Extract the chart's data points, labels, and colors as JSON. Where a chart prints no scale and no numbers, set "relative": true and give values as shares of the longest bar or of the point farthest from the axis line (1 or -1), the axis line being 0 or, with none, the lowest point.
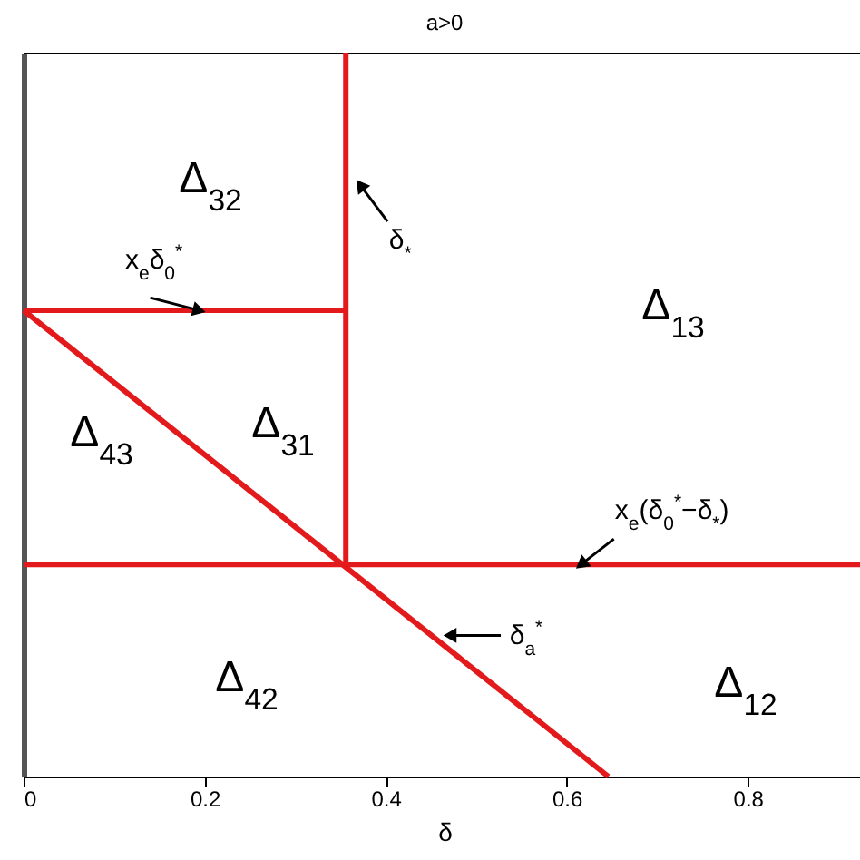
{
  "chart_data": {
    "type": "line",
    "title": "a>0",
    "xlabel": "δ",
    "relative": true,
    "xlim": [
      0,
      0.93
    ],
    "xticks": [
      0,
      0.2,
      0.4,
      0.6,
      0.8
    ],
    "grid": false,
    "marker": "none",
    "line_style": "solid",
    "series": [
      {
        "color": "#e31a1c",
        "x": [
          0.356,
          0.356
        ],
        "values": [
          0.293,
          1
        ]
      },
      {
        "color": "#e31a1c",
        "x": [
          0,
          0.356
        ],
        "values": [
          0.644,
          0.644
        ]
      },
      {
        "color": "#e31a1c",
        "x": [
          0,
          0.93
        ],
        "values": [
          0.293,
          0.293
        ]
      },
      {
        "color": "#e31a1c",
        "x": [
          0,
          0.646
        ],
        "values": [
          0.644,
          0
        ]
      }
    ],
    "annotations": [
      "Δ$_{32}$",
      "Δ$_{13}$",
      "Δ$_{31}$",
      "Δ$_{43}$",
      "Δ$_{42}$",
      "Δ$_{12}$",
      {
        "text": "x$_{e}$δ$_{0}$$^{*}$",
        "x": 0.194,
        "y": 0.644
      },
      {
        "text": "δ$_{*}$",
        "x": 0.372,
        "y": 0.817
      },
      {
        "text": "x$_{e}$(δ$_{0}$$^{*}$−δ$_{*}$)",
        "x": 0.616,
        "y": 0.293
      },
      {
        "text": "δ$_{a}$$^{*}$",
        "x": 0.471,
        "y": 0.195
      }
    ]
  }
}
